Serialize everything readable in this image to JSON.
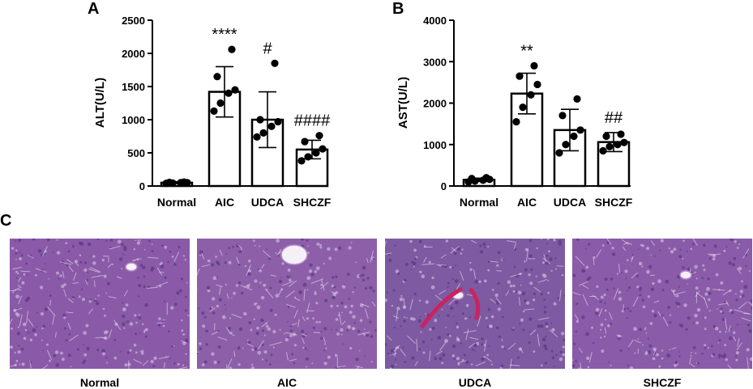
{
  "panels": {
    "a": "A",
    "b": "B",
    "c": "C"
  },
  "chart_data": [
    {
      "type": "bar",
      "ylabel": "ALT(U/L)",
      "ylim": [
        0,
        2500
      ],
      "yticks": [
        0,
        500,
        1000,
        1500,
        2000,
        2500
      ],
      "categories": [
        "Normal",
        "AIC",
        "UDCA",
        "SHCZF"
      ],
      "values": [
        50,
        1420,
        1000,
        550
      ],
      "error": [
        15,
        380,
        420,
        140
      ],
      "points": [
        [
          40,
          45,
          50,
          50,
          55,
          60
        ],
        [
          1130,
          1250,
          1400,
          1450,
          1650,
          2060
        ],
        [
          740,
          800,
          900,
          970,
          1000,
          1850
        ],
        [
          380,
          440,
          500,
          560,
          670,
          760
        ]
      ],
      "annotations": [
        "",
        "****",
        "#",
        "####"
      ]
    },
    {
      "type": "bar",
      "ylabel": "AST(U/L)",
      "ylim": [
        0,
        4000
      ],
      "yticks": [
        0,
        1000,
        2000,
        3000,
        4000
      ],
      "categories": [
        "Normal",
        "AIC",
        "UDCA",
        "SHCZF"
      ],
      "values": [
        150,
        2230,
        1350,
        1060
      ],
      "error": [
        40,
        490,
        500,
        230
      ],
      "points": [
        [
          100,
          120,
          140,
          160,
          180,
          200
        ],
        [
          1550,
          1900,
          2200,
          2450,
          2650,
          2900
        ],
        [
          800,
          1000,
          1200,
          1350,
          1700,
          2100
        ],
        [
          850,
          950,
          1000,
          1050,
          1200,
          1250
        ]
      ],
      "annotations": [
        "",
        "**",
        "",
        "##"
      ]
    }
  ],
  "histology": {
    "images": [
      {
        "label": "Normal",
        "tissue_color": "#8a5aa8"
      },
      {
        "label": "AIC",
        "tissue_color": "#8d5fa9"
      },
      {
        "label": "UDCA",
        "tissue_color": "#7e5aa2"
      },
      {
        "label": "SHCZF",
        "tissue_color": "#8a5ba8"
      }
    ]
  }
}
